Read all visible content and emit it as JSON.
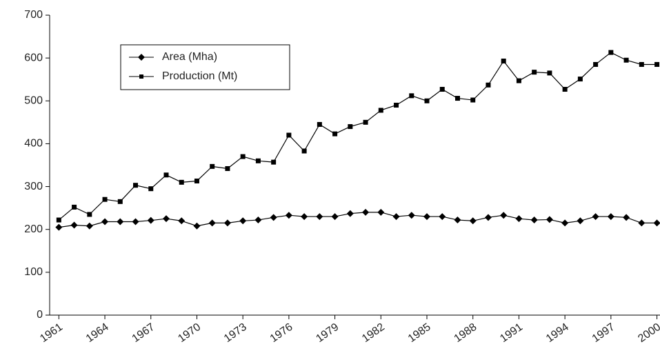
{
  "chart_data": {
    "type": "line",
    "x": [
      1961,
      1962,
      1963,
      1964,
      1965,
      1966,
      1967,
      1968,
      1969,
      1970,
      1971,
      1972,
      1973,
      1974,
      1975,
      1976,
      1977,
      1978,
      1979,
      1980,
      1981,
      1982,
      1983,
      1984,
      1985,
      1986,
      1987,
      1988,
      1989,
      1990,
      1991,
      1992,
      1993,
      1994,
      1995,
      1996,
      1997,
      1998,
      1999,
      2000
    ],
    "series": [
      {
        "name": "Area (Mha)",
        "color": "#000000",
        "marker": "diamond",
        "values": [
          205,
          210,
          208,
          218,
          218,
          218,
          221,
          225,
          220,
          208,
          215,
          215,
          220,
          222,
          228,
          233,
          230,
          230,
          230,
          237,
          240,
          240,
          230,
          233,
          230,
          230,
          222,
          220,
          228,
          233,
          225,
          222,
          223,
          215,
          220,
          230,
          230,
          228,
          215,
          215
        ]
      },
      {
        "name": "Production (Mt)",
        "color": "#000000",
        "marker": "square",
        "values": [
          222,
          252,
          235,
          270,
          265,
          303,
          295,
          327,
          310,
          313,
          347,
          342,
          370,
          360,
          357,
          420,
          383,
          445,
          423,
          440,
          450,
          478,
          490,
          512,
          500,
          527,
          506,
          502,
          537,
          593,
          547,
          567,
          565,
          527,
          551,
          585,
          613,
          595,
          585,
          585
        ]
      }
    ],
    "xlim": [
      1960.4,
      2000.2
    ],
    "xticks": [
      1961,
      1964,
      1967,
      1970,
      1973,
      1976,
      1979,
      1982,
      1985,
      1988,
      1991,
      1994,
      1997,
      2000
    ],
    "ylim": [
      0,
      700
    ],
    "yticks": [
      0,
      100,
      200,
      300,
      400,
      500,
      600,
      700
    ],
    "legend": "upper-left"
  }
}
